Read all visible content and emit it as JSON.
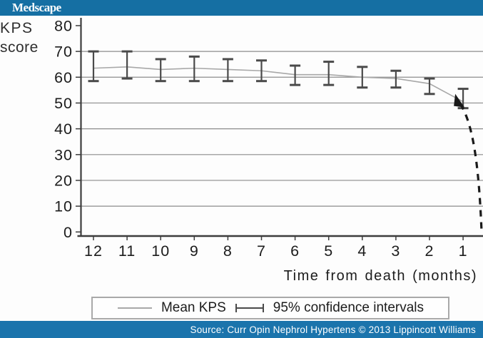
{
  "header": {
    "logo_text": "Medscape"
  },
  "y_axis_label": {
    "line1": "KPS",
    "line2": "score"
  },
  "legend": {
    "mean_label": "Mean KPS",
    "ci_label": "95% confidence intervals"
  },
  "footer": {
    "source_text": "Source: Curr Opin Nephrol Hypertens © 2013 Lippincott Williams"
  },
  "colors": {
    "header_blue": "#156FA3",
    "footer_blue": "#1B74AC",
    "grid": "#8c8c8c",
    "axis": "#3d3d3d",
    "tick_text": "#1c1c1c",
    "mean_line": "#a8a8a8",
    "error_bar": "#4a4a4a",
    "dashed_projection": "#1a1a1a"
  },
  "chart_data": {
    "type": "line",
    "title": "",
    "xlabel": "Time from death (months)",
    "ylabel": "KPS score",
    "x": [
      12,
      11,
      10,
      9,
      8,
      7,
      6,
      5,
      4,
      3,
      2,
      1
    ],
    "yticks": [
      0,
      10,
      20,
      30,
      40,
      50,
      60,
      70,
      80
    ],
    "ylim": [
      0,
      80
    ],
    "grid": true,
    "legend_position": "bottom",
    "series": [
      {
        "name": "Mean KPS",
        "style": "line",
        "values": [
          63.5,
          64,
          63,
          63.5,
          63,
          62.5,
          61,
          61,
          60,
          59.5,
          57.5,
          50.5
        ]
      },
      {
        "name": "95% confidence intervals",
        "style": "errorbar",
        "upper": [
          70,
          70,
          67,
          68,
          67,
          66.5,
          64.5,
          66,
          64,
          62.5,
          59.5,
          55.5
        ],
        "lower": [
          58.5,
          59.5,
          58.5,
          58.5,
          58.5,
          58.5,
          57,
          57,
          56,
          56,
          53.5,
          48
        ]
      }
    ],
    "annotation": {
      "type": "dashed-projection",
      "description": "dashed curve dropping steeply from the month-1 mean toward 0 at the right edge"
    }
  }
}
